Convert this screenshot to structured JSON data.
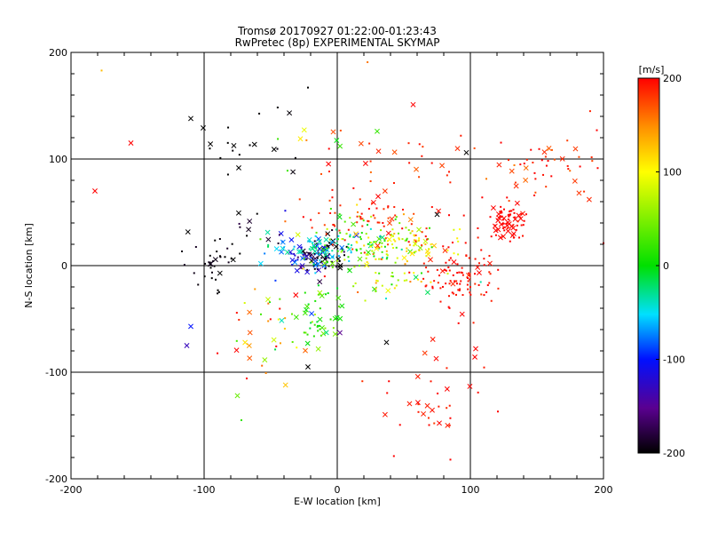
{
  "chart_data": {
    "type": "scatter",
    "title": "Tromsø 20170927 01:22:00-01:23:43",
    "subtitle": "RwPretec (8p) EXPERIMENTAL SKYMAP",
    "xlabel": "E-W location [km]",
    "ylabel": "N-S location [km]",
    "xlim": [
      -200,
      200
    ],
    "ylim": [
      -200,
      200
    ],
    "xticks": [
      "-200",
      "-100",
      "0",
      "100",
      "200"
    ],
    "yticks": [
      "-200",
      "-100",
      "0",
      "100",
      "200"
    ],
    "grid": true,
    "colorbar": {
      "label": "[m/s]",
      "range": [
        -200,
        200
      ],
      "ticks": [
        "200",
        "100",
        "0",
        "-100",
        "-200"
      ],
      "colormap": "black-purple-blue-cyan-green-yellow-red"
    },
    "marker_types": [
      "x",
      "dot"
    ],
    "clusters": [
      {
        "x": -12,
        "y": 10,
        "sx": 9,
        "sy": 9,
        "n": 60,
        "v": -200,
        "vs": 20,
        "xf": 0.35
      },
      {
        "x": -25,
        "y": 6,
        "sx": 9,
        "sy": 8,
        "n": 35,
        "v": -110,
        "vs": 25,
        "xf": 0.5
      },
      {
        "x": -38,
        "y": 18,
        "sx": 14,
        "sy": 8,
        "n": 30,
        "v": -50,
        "vs": 25,
        "xf": 0.6
      },
      {
        "x": -8,
        "y": 18,
        "sx": 10,
        "sy": 10,
        "n": 30,
        "v": -60,
        "vs": 30,
        "xf": 0.5
      },
      {
        "x": 20,
        "y": 20,
        "sx": 18,
        "sy": 12,
        "n": 110,
        "v": 30,
        "vs": 45,
        "xf": 0.1
      },
      {
        "x": 55,
        "y": 22,
        "sx": 15,
        "sy": 10,
        "n": 70,
        "v": 100,
        "vs": 40,
        "xf": 0.1
      },
      {
        "x": 40,
        "y": -15,
        "sx": 20,
        "sy": 12,
        "n": 40,
        "v": 60,
        "vs": 50,
        "xf": 0.2
      },
      {
        "x": 25,
        "y": 45,
        "sx": 25,
        "sy": 15,
        "n": 70,
        "v": 190,
        "vs": 10,
        "xf": 0.05
      },
      {
        "x": 95,
        "y": -10,
        "sx": 15,
        "sy": 20,
        "n": 100,
        "v": 195,
        "vs": 6,
        "xf": 0.1
      },
      {
        "x": 128,
        "y": 40,
        "sx": 8,
        "sy": 10,
        "n": 70,
        "v": 200,
        "vs": 3,
        "xf": 0.45
      },
      {
        "x": 150,
        "y": 95,
        "sx": 25,
        "sy": 15,
        "n": 50,
        "v": 185,
        "vs": 15,
        "xf": 0.2
      },
      {
        "x": 75,
        "y": -120,
        "sx": 25,
        "sy": 25,
        "n": 35,
        "v": 195,
        "vs": 8,
        "xf": 0.3
      },
      {
        "x": -15,
        "y": -50,
        "sx": 9,
        "sy": 14,
        "n": 50,
        "v": 15,
        "vs": 30,
        "xf": 0.3
      },
      {
        "x": -55,
        "y": -70,
        "sx": 15,
        "sy": 25,
        "n": 35,
        "v": 130,
        "vs": 80,
        "xf": 0.45
      },
      {
        "x": -95,
        "y": 5,
        "sx": 10,
        "sy": 15,
        "n": 30,
        "v": -200,
        "vs": 5,
        "xf": 0.2
      },
      {
        "x": -70,
        "y": 110,
        "sx": 22,
        "sy": 20,
        "n": 20,
        "v": -200,
        "vs": 5,
        "xf": 0.5
      },
      {
        "x": -70,
        "y": 35,
        "sx": 15,
        "sy": 10,
        "n": 15,
        "v": -190,
        "vs": 10,
        "xf": 0.3
      },
      {
        "x": 50,
        "y": 95,
        "sx": 50,
        "sy": 35,
        "n": 35,
        "v": 185,
        "vs": 15,
        "xf": 0.2
      },
      {
        "x": -5,
        "y": 80,
        "sx": 20,
        "sy": 40,
        "n": 15,
        "v": 80,
        "vs": 100,
        "xf": 0.3
      }
    ],
    "outliers": [
      {
        "x": -182,
        "y": 70,
        "v": 200,
        "m": "x"
      },
      {
        "x": -155,
        "y": 115,
        "v": 200,
        "m": "x"
      },
      {
        "x": -177,
        "y": 183,
        "v": 130,
        "m": "dot"
      },
      {
        "x": -110,
        "y": 138,
        "v": -200,
        "m": "x"
      },
      {
        "x": -113,
        "y": -75,
        "v": -130,
        "m": "x"
      },
      {
        "x": -110,
        "y": -57,
        "v": -100,
        "m": "x"
      },
      {
        "x": -22,
        "y": 167,
        "v": -200,
        "m": "dot"
      },
      {
        "x": 57,
        "y": 151,
        "v": 200,
        "m": "x"
      },
      {
        "x": 30,
        "y": 126,
        "v": 20,
        "m": "x"
      },
      {
        "x": -75,
        "y": -122,
        "v": 40,
        "m": "x"
      },
      {
        "x": -72,
        "y": -145,
        "v": 20,
        "m": "dot"
      },
      {
        "x": 85,
        "y": -182,
        "v": 200,
        "m": "dot"
      },
      {
        "x": 200,
        "y": 21,
        "v": 200,
        "m": "dot"
      },
      {
        "x": 195,
        "y": 127,
        "v": 200,
        "m": "dot"
      },
      {
        "x": 104,
        "y": -78,
        "v": 200,
        "m": "x"
      },
      {
        "x": 97,
        "y": 106,
        "v": -200,
        "m": "x"
      },
      {
        "x": 37,
        "y": -72,
        "v": -200,
        "m": "x"
      },
      {
        "x": -22,
        "y": -95,
        "v": -200,
        "m": "x"
      },
      {
        "x": 2,
        "y": -63,
        "v": -150,
        "m": "x"
      },
      {
        "x": 75,
        "y": 48,
        "v": -200,
        "m": "x"
      }
    ]
  }
}
